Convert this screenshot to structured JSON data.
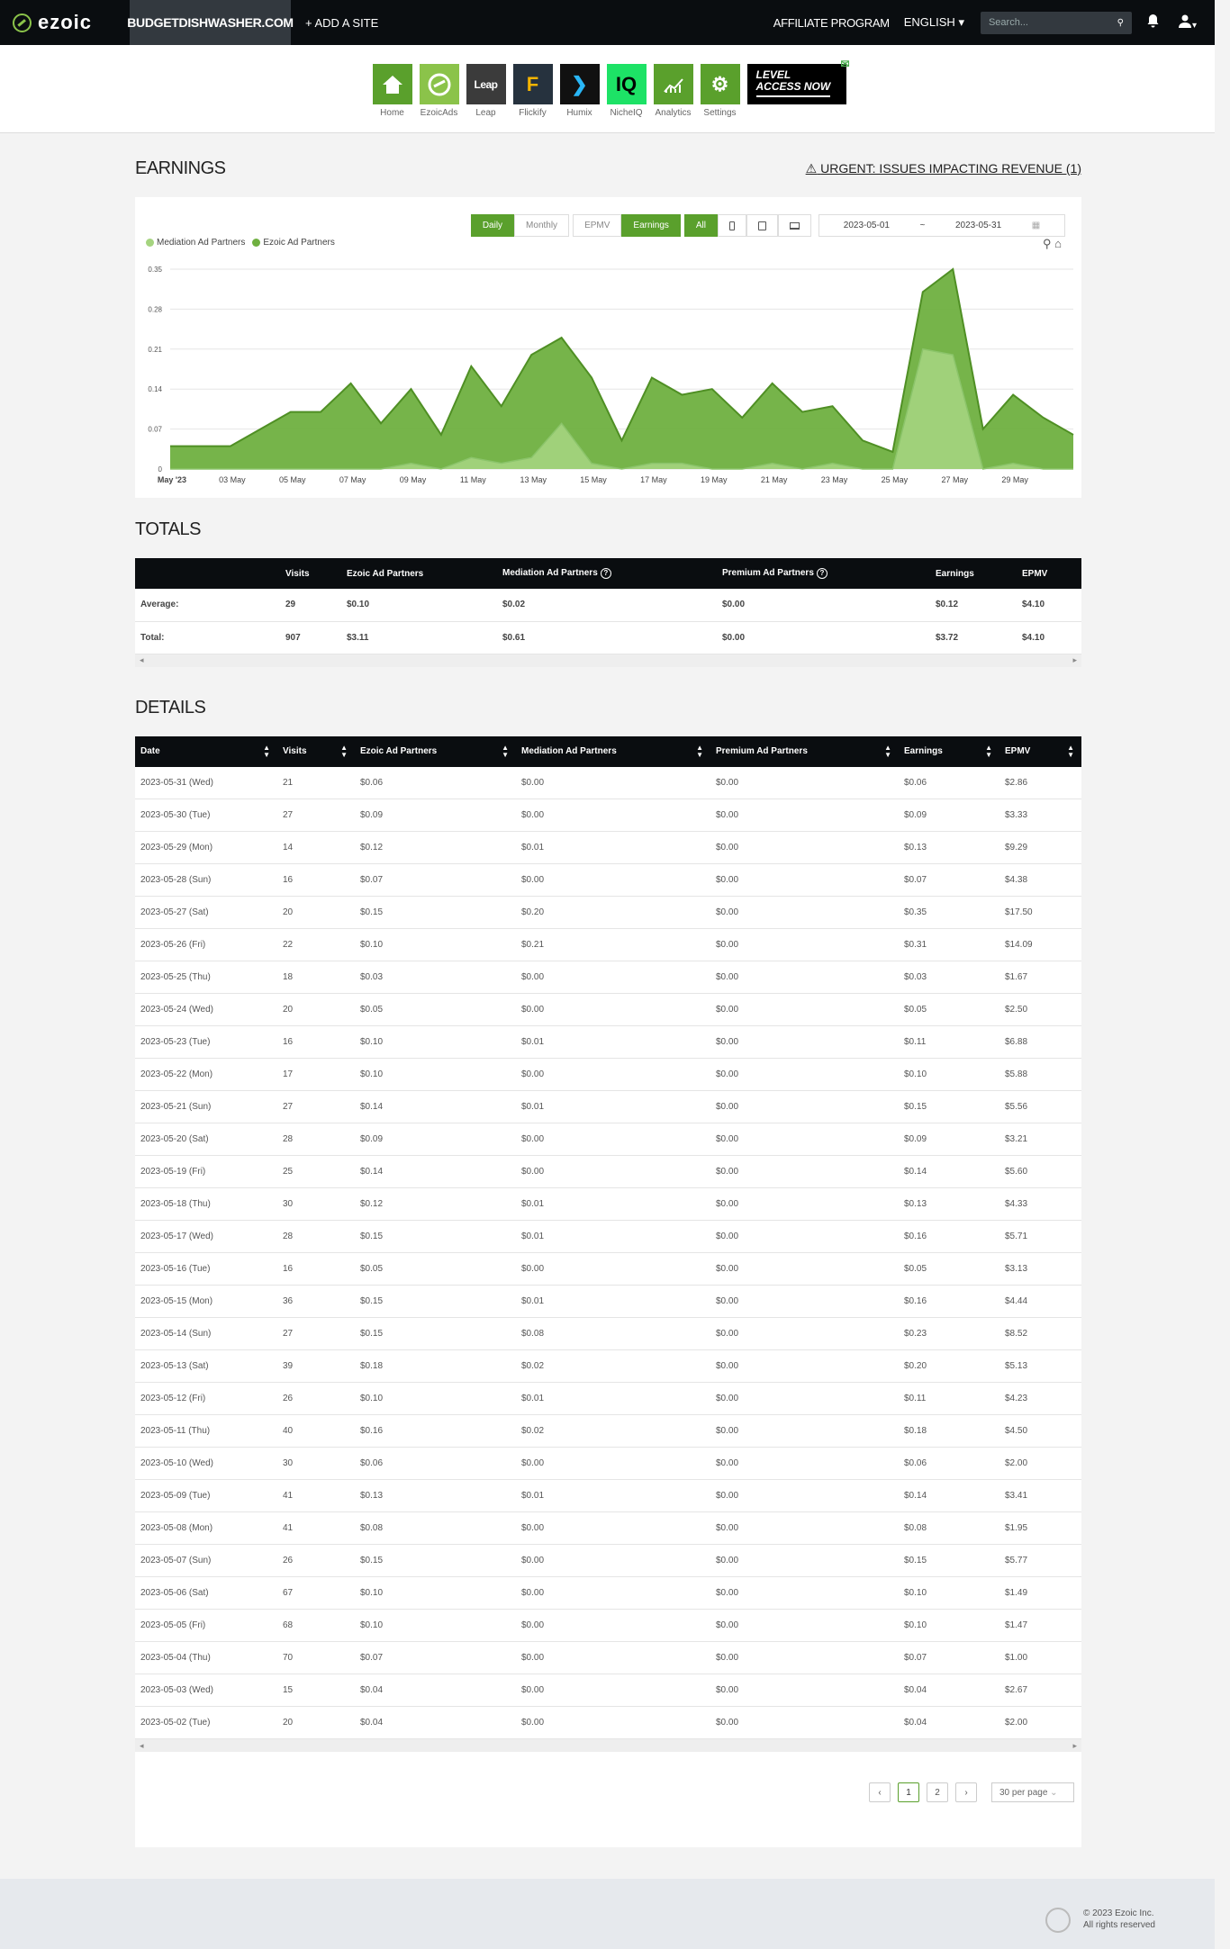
{
  "nav": {
    "logo": "ezoic",
    "site": "BUDGETDISHWASHER.COM",
    "add_site": "+ ADD A SITE",
    "affiliate": "AFFILIATE PROGRAM",
    "language": "ENGLISH",
    "search_placeholder": "Search..."
  },
  "apps": [
    {
      "label": "Home",
      "color": "#5aa02c",
      "icon": "house"
    },
    {
      "label": "EzoicAds",
      "color": "#8bc34a",
      "icon": "ezoic"
    },
    {
      "label": "Leap",
      "color": "#3b3b3b",
      "icon": "Leap"
    },
    {
      "label": "Flickify",
      "color": "#26323e",
      "icon": "F"
    },
    {
      "label": "Humix",
      "color": "#111111",
      "icon": "❯"
    },
    {
      "label": "NicheIQ",
      "color": "#1de266",
      "icon": "IQ"
    },
    {
      "label": "Analytics",
      "color": "#5aa02c",
      "icon": "chart"
    },
    {
      "label": "Settings",
      "color": "#5aa02c",
      "icon": "⚙"
    }
  ],
  "level": {
    "line1": "LEVEL",
    "line2": "ACCESS NOW"
  },
  "earnings": {
    "title": "EARNINGS",
    "urgent": "URGENT: ISSUES IMPACTING REVENUE (1)",
    "toolbar": {
      "daily": "Daily",
      "monthly": "Monthly",
      "epmv": "EPMV",
      "earnings": "Earnings",
      "all": "All"
    },
    "date_from": "2023-05-01",
    "date_sep": "~",
    "date_to": "2023-05-31"
  },
  "chart_data": {
    "type": "area",
    "legend": [
      "Mediation Ad Partners",
      "Ezoic Ad Partners"
    ],
    "colors": {
      "mediation": "#a5d47f",
      "ezoic": "#6fb040"
    },
    "y_ticks": [
      "0",
      "0.07",
      "0.14",
      "0.21",
      "0.28",
      "0.35"
    ],
    "ylim": [
      0,
      0.35
    ],
    "x_ticks": [
      "May '23",
      "03 May",
      "05 May",
      "07 May",
      "09 May",
      "11 May",
      "13 May",
      "15 May",
      "17 May",
      "19 May",
      "21 May",
      "23 May",
      "25 May",
      "27 May",
      "29 May"
    ],
    "x_tick_days": [
      1,
      3,
      5,
      7,
      9,
      11,
      13,
      15,
      17,
      19,
      21,
      23,
      25,
      27,
      29
    ],
    "days": [
      1,
      2,
      3,
      4,
      5,
      6,
      7,
      8,
      9,
      10,
      11,
      12,
      13,
      14,
      15,
      16,
      17,
      18,
      19,
      20,
      21,
      22,
      23,
      24,
      25,
      26,
      27,
      28,
      29,
      30,
      31
    ],
    "series": [
      {
        "name": "Ezoic Ad Partners",
        "values": [
          0.04,
          0.04,
          0.04,
          0.07,
          0.1,
          0.1,
          0.15,
          0.08,
          0.14,
          0.06,
          0.18,
          0.11,
          0.2,
          0.23,
          0.16,
          0.05,
          0.16,
          0.13,
          0.14,
          0.09,
          0.15,
          0.1,
          0.11,
          0.05,
          0.03,
          0.31,
          0.35,
          0.07,
          0.13,
          0.09,
          0.06
        ]
      },
      {
        "name": "Mediation Ad Partners",
        "values": [
          0.0,
          0.0,
          0.0,
          0.0,
          0.0,
          0.0,
          0.0,
          0.0,
          0.01,
          0.0,
          0.02,
          0.01,
          0.02,
          0.08,
          0.01,
          0.0,
          0.01,
          0.01,
          0.0,
          0.0,
          0.01,
          0.0,
          0.01,
          0.0,
          0.0,
          0.21,
          0.2,
          0.0,
          0.01,
          0.0,
          0.0
        ]
      }
    ]
  },
  "totals": {
    "title": "TOTALS",
    "headers": [
      "",
      "Visits",
      "Ezoic Ad Partners",
      "Mediation Ad Partners",
      "Premium Ad Partners",
      "Earnings",
      "EPMV"
    ],
    "rows": [
      [
        "Average:",
        "29",
        "$0.10",
        "$0.02",
        "$0.00",
        "$0.12",
        "$4.10"
      ],
      [
        "Total:",
        "907",
        "$3.11",
        "$0.61",
        "$0.00",
        "$3.72",
        "$4.10"
      ]
    ]
  },
  "details": {
    "title": "DETAILS",
    "headers": [
      "Date",
      "Visits",
      "Ezoic Ad Partners",
      "Mediation Ad Partners",
      "Premium Ad Partners",
      "Earnings",
      "EPMV"
    ],
    "rows": [
      [
        "2023-05-31 (Wed)",
        "21",
        "$0.06",
        "$0.00",
        "$0.00",
        "$0.06",
        "$2.86"
      ],
      [
        "2023-05-30 (Tue)",
        "27",
        "$0.09",
        "$0.00",
        "$0.00",
        "$0.09",
        "$3.33"
      ],
      [
        "2023-05-29 (Mon)",
        "14",
        "$0.12",
        "$0.01",
        "$0.00",
        "$0.13",
        "$9.29"
      ],
      [
        "2023-05-28 (Sun)",
        "16",
        "$0.07",
        "$0.00",
        "$0.00",
        "$0.07",
        "$4.38"
      ],
      [
        "2023-05-27 (Sat)",
        "20",
        "$0.15",
        "$0.20",
        "$0.00",
        "$0.35",
        "$17.50"
      ],
      [
        "2023-05-26 (Fri)",
        "22",
        "$0.10",
        "$0.21",
        "$0.00",
        "$0.31",
        "$14.09"
      ],
      [
        "2023-05-25 (Thu)",
        "18",
        "$0.03",
        "$0.00",
        "$0.00",
        "$0.03",
        "$1.67"
      ],
      [
        "2023-05-24 (Wed)",
        "20",
        "$0.05",
        "$0.00",
        "$0.00",
        "$0.05",
        "$2.50"
      ],
      [
        "2023-05-23 (Tue)",
        "16",
        "$0.10",
        "$0.01",
        "$0.00",
        "$0.11",
        "$6.88"
      ],
      [
        "2023-05-22 (Mon)",
        "17",
        "$0.10",
        "$0.00",
        "$0.00",
        "$0.10",
        "$5.88"
      ],
      [
        "2023-05-21 (Sun)",
        "27",
        "$0.14",
        "$0.01",
        "$0.00",
        "$0.15",
        "$5.56"
      ],
      [
        "2023-05-20 (Sat)",
        "28",
        "$0.09",
        "$0.00",
        "$0.00",
        "$0.09",
        "$3.21"
      ],
      [
        "2023-05-19 (Fri)",
        "25",
        "$0.14",
        "$0.00",
        "$0.00",
        "$0.14",
        "$5.60"
      ],
      [
        "2023-05-18 (Thu)",
        "30",
        "$0.12",
        "$0.01",
        "$0.00",
        "$0.13",
        "$4.33"
      ],
      [
        "2023-05-17 (Wed)",
        "28",
        "$0.15",
        "$0.01",
        "$0.00",
        "$0.16",
        "$5.71"
      ],
      [
        "2023-05-16 (Tue)",
        "16",
        "$0.05",
        "$0.00",
        "$0.00",
        "$0.05",
        "$3.13"
      ],
      [
        "2023-05-15 (Mon)",
        "36",
        "$0.15",
        "$0.01",
        "$0.00",
        "$0.16",
        "$4.44"
      ],
      [
        "2023-05-14 (Sun)",
        "27",
        "$0.15",
        "$0.08",
        "$0.00",
        "$0.23",
        "$8.52"
      ],
      [
        "2023-05-13 (Sat)",
        "39",
        "$0.18",
        "$0.02",
        "$0.00",
        "$0.20",
        "$5.13"
      ],
      [
        "2023-05-12 (Fri)",
        "26",
        "$0.10",
        "$0.01",
        "$0.00",
        "$0.11",
        "$4.23"
      ],
      [
        "2023-05-11 (Thu)",
        "40",
        "$0.16",
        "$0.02",
        "$0.00",
        "$0.18",
        "$4.50"
      ],
      [
        "2023-05-10 (Wed)",
        "30",
        "$0.06",
        "$0.00",
        "$0.00",
        "$0.06",
        "$2.00"
      ],
      [
        "2023-05-09 (Tue)",
        "41",
        "$0.13",
        "$0.01",
        "$0.00",
        "$0.14",
        "$3.41"
      ],
      [
        "2023-05-08 (Mon)",
        "41",
        "$0.08",
        "$0.00",
        "$0.00",
        "$0.08",
        "$1.95"
      ],
      [
        "2023-05-07 (Sun)",
        "26",
        "$0.15",
        "$0.00",
        "$0.00",
        "$0.15",
        "$5.77"
      ],
      [
        "2023-05-06 (Sat)",
        "67",
        "$0.10",
        "$0.00",
        "$0.00",
        "$0.10",
        "$1.49"
      ],
      [
        "2023-05-05 (Fri)",
        "68",
        "$0.10",
        "$0.00",
        "$0.00",
        "$0.10",
        "$1.47"
      ],
      [
        "2023-05-04 (Thu)",
        "70",
        "$0.07",
        "$0.00",
        "$0.00",
        "$0.07",
        "$1.00"
      ],
      [
        "2023-05-03 (Wed)",
        "15",
        "$0.04",
        "$0.00",
        "$0.00",
        "$0.04",
        "$2.67"
      ],
      [
        "2023-05-02 (Tue)",
        "20",
        "$0.04",
        "$0.00",
        "$0.00",
        "$0.04",
        "$2.00"
      ]
    ]
  },
  "pagination": {
    "pages": [
      "1",
      "2"
    ],
    "current": "1",
    "per_page": "30 per page"
  },
  "footer": {
    "line1": "© 2023 Ezoic Inc.",
    "line2": "All rights reserved"
  }
}
